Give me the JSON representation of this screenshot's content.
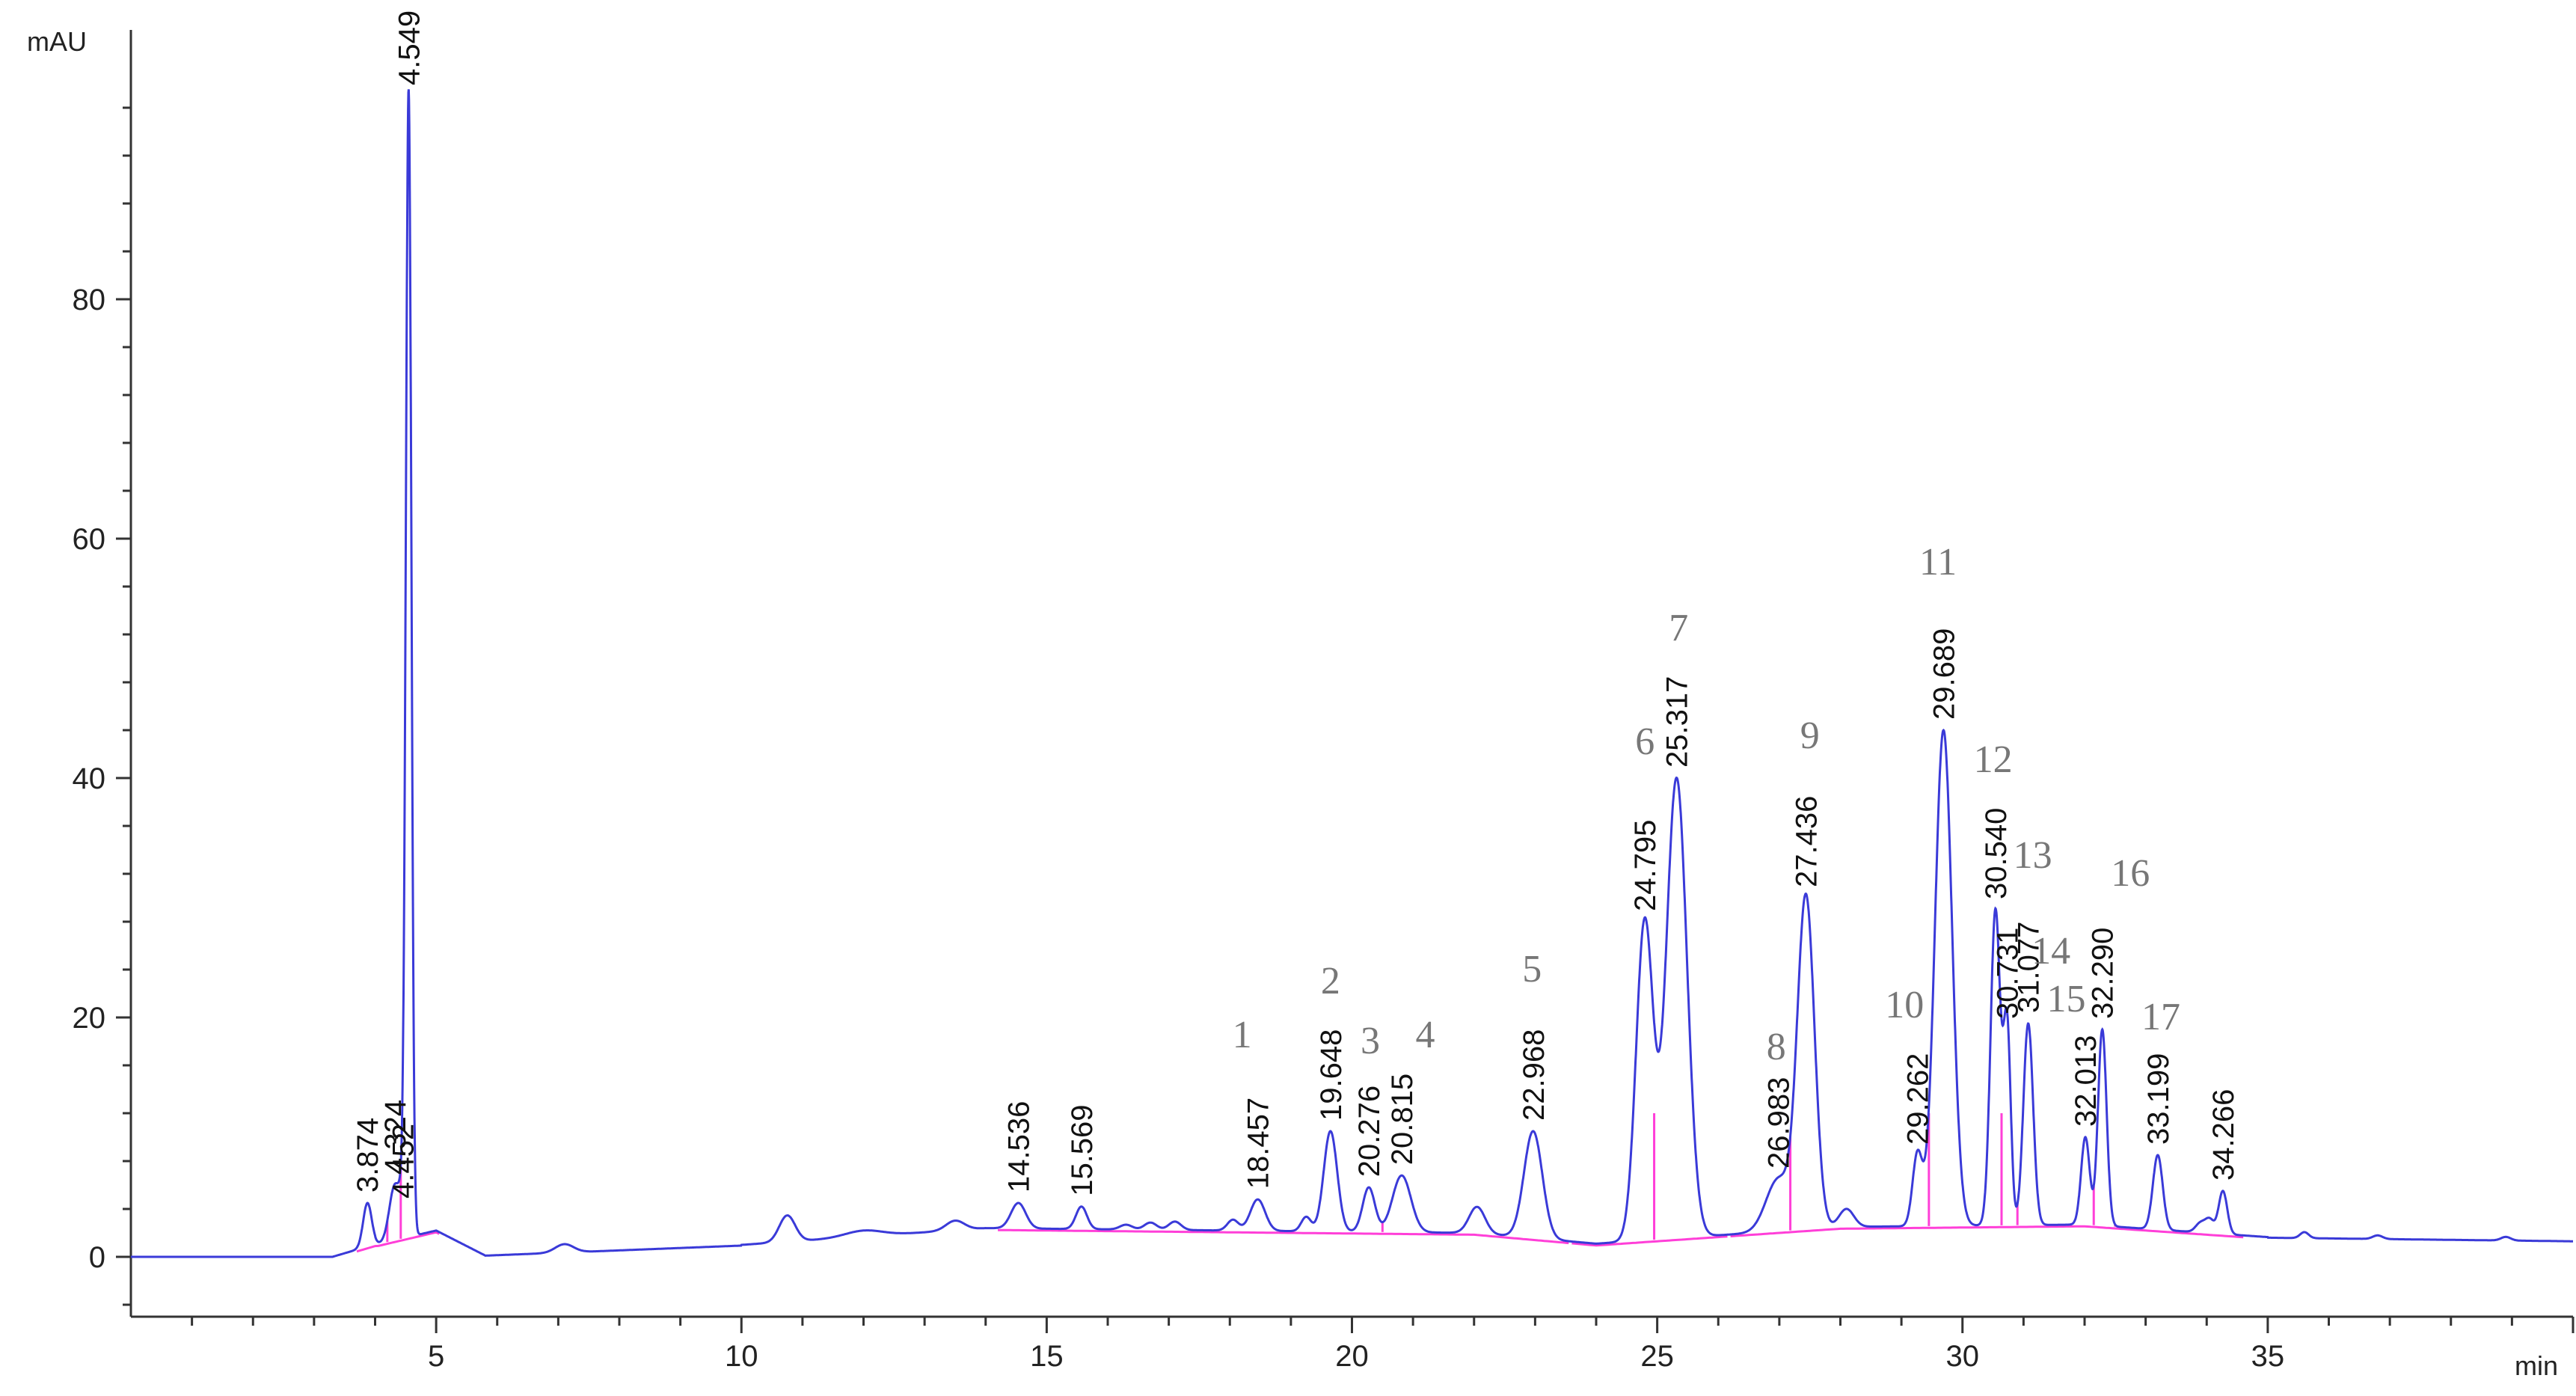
{
  "chart_data": {
    "type": "line",
    "title": "",
    "ylabel": "mAU",
    "xlabel": "min",
    "xlim": [
      0,
      40
    ],
    "ylim": [
      -5,
      100
    ],
    "x_ticks": [
      5,
      10,
      15,
      20,
      25,
      30,
      35
    ],
    "x_tick_labels": [
      "5",
      "10",
      "15",
      "20",
      "25",
      "30",
      "35"
    ],
    "y_ticks": [
      0,
      20,
      40,
      60,
      80
    ],
    "y_tick_labels": [
      "0",
      "20",
      "40",
      "60",
      "80"
    ],
    "grid": false,
    "colors": {
      "signal": "#3a3ad8",
      "baseline": "#ff3fd8",
      "axis": "#333333"
    },
    "peaks": [
      {
        "rt": 3.874,
        "label": "3.874",
        "height": 4.5,
        "width": 0.07
      },
      {
        "rt": 4.324,
        "label": "4.324",
        "height": 6.0,
        "width": 0.09
      },
      {
        "rt": 4.452,
        "label": "4.452",
        "height": 4.0,
        "width": 0.05
      },
      {
        "rt": 4.549,
        "label": "4.549",
        "height": 97.0,
        "width": 0.045
      },
      {
        "rt": 14.536,
        "label": "14.536",
        "height": 4.5,
        "width": 0.12
      },
      {
        "rt": 15.569,
        "label": "15.569",
        "height": 4.2,
        "width": 0.09
      },
      {
        "rt": 18.457,
        "label": "18.457",
        "height": 4.8,
        "width": 0.12
      },
      {
        "rt": 19.648,
        "label": "19.648",
        "height": 10.5,
        "width": 0.11
      },
      {
        "rt": 20.276,
        "label": "20.276",
        "height": 5.8,
        "width": 0.1
      },
      {
        "rt": 20.815,
        "label": "20.815",
        "height": 6.8,
        "width": 0.15
      },
      {
        "rt": 22.968,
        "label": "22.968",
        "height": 10.5,
        "width": 0.15
      },
      {
        "rt": 24.795,
        "label": "24.795",
        "height": 28.0,
        "width": 0.14
      },
      {
        "rt": 25.317,
        "label": "25.317",
        "height": 40.0,
        "width": 0.17
      },
      {
        "rt": 26.983,
        "label": "26.983",
        "height": 6.5,
        "width": 0.2
      },
      {
        "rt": 27.436,
        "label": "27.436",
        "height": 30.0,
        "width": 0.14
      },
      {
        "rt": 29.262,
        "label": "29.262",
        "height": 8.5,
        "width": 0.08
      },
      {
        "rt": 29.689,
        "label": "29.689",
        "height": 44.0,
        "width": 0.14
      },
      {
        "rt": 30.54,
        "label": "30.540",
        "height": 29.0,
        "width": 0.08
      },
      {
        "rt": 30.731,
        "label": "30.731",
        "height": 19.0,
        "width": 0.06
      },
      {
        "rt": 31.077,
        "label": "31.077",
        "height": 19.5,
        "width": 0.08
      },
      {
        "rt": 32.013,
        "label": "32.013",
        "height": 10.0,
        "width": 0.07
      },
      {
        "rt": 32.29,
        "label": "32.290",
        "height": 19.0,
        "width": 0.07
      },
      {
        "rt": 33.199,
        "label": "33.199",
        "height": 8.5,
        "width": 0.08
      },
      {
        "rt": 34.266,
        "label": "34.266",
        "height": 5.5,
        "width": 0.07
      }
    ],
    "peak_numbers": [
      {
        "label": "1",
        "x": 18.2,
        "y": 17.5
      },
      {
        "label": "2",
        "x": 19.65,
        "y": 22.0
      },
      {
        "label": "3",
        "x": 20.3,
        "y": 17.0
      },
      {
        "label": "4",
        "x": 21.2,
        "y": 17.5
      },
      {
        "label": "5",
        "x": 22.95,
        "y": 23.0
      },
      {
        "label": "6",
        "x": 24.8,
        "y": 42.0
      },
      {
        "label": "7",
        "x": 25.35,
        "y": 51.5
      },
      {
        "label": "8",
        "x": 26.95,
        "y": 16.5
      },
      {
        "label": "9",
        "x": 27.5,
        "y": 42.5
      },
      {
        "label": "10",
        "x": 29.05,
        "y": 20.0
      },
      {
        "label": "11",
        "x": 29.6,
        "y": 57.0
      },
      {
        "label": "12",
        "x": 30.5,
        "y": 40.5
      },
      {
        "label": "13",
        "x": 31.15,
        "y": 32.5
      },
      {
        "label": "14",
        "x": 31.45,
        "y": 24.5
      },
      {
        "label": "15",
        "x": 31.7,
        "y": 20.5
      },
      {
        "label": "16",
        "x": 32.75,
        "y": 31.0
      },
      {
        "label": "17",
        "x": 33.25,
        "y": 19.0
      }
    ]
  }
}
